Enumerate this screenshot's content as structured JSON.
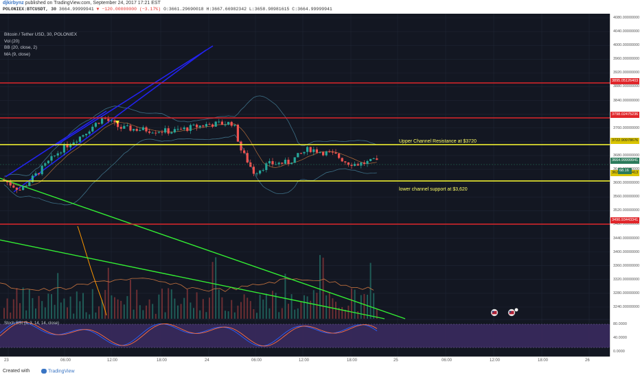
{
  "header": {
    "author": "djkirbynz",
    "published": "published on TradingView.com, September 24, 2017 17:21 EST",
    "symbol": "POLONIEX:BTCUSDT, 30",
    "price": "3664.99999941",
    "change": "▼ −120.00000000 (−3.17%)",
    "ohlc": "O:3661.29690018 H:3667.66982342 L:3658.98981615 C:3664.99999941"
  },
  "legend": {
    "title": "Bitcoin / Tether USD, 30, POLONIEX",
    "vol": "Vol (20)",
    "bb": "BB (20, close, 2)",
    "ma": "MA (9, close)",
    "stoch": "Stoch RSI (3, 3, 14, 14, close)"
  },
  "annotations": {
    "upper": "Upper Channel Resistance at $3720",
    "lower": "lower channel support at $3,620"
  },
  "yaxis": {
    "ticks": [
      "4080.00000000",
      "4040.00000000",
      "4000.00000000",
      "3960.00000000",
      "3920.00000000",
      "3880.00000000",
      "3840.00000000",
      "3800.00000000",
      "3760.00000000",
      "3720.00000000",
      "3680.00000000",
      "3640.00000000",
      "3600.00000000",
      "3560.00000000",
      "3520.00000000",
      "3480.00000000",
      "3440.00000000",
      "3400.00000000",
      "3360.00000000",
      "3320.00000000",
      "3280.00000000",
      "3240.00000000"
    ],
    "stoch_ticks": [
      "80.0000",
      "40.0000",
      "0.0000"
    ],
    "tags": [
      {
        "label": "3895.05126403",
        "color": "#e0262a"
      },
      {
        "label": "3798.02475236",
        "color": "#e0262a"
      },
      {
        "label": "3722.90978676",
        "color": "#d9c400"
      },
      {
        "label": "3664.99999941",
        "color": "#2b7a5b"
      },
      {
        "label": "3629.63425413",
        "color": "#d9c400"
      },
      {
        "label": "3490.93443341",
        "color": "#e0262a"
      }
    ],
    "volume_tag": "68.16"
  },
  "xaxis": {
    "ticks": [
      "23",
      "06:00",
      "12:00",
      "18:00",
      "24",
      "06:00",
      "12:00",
      "18:00",
      "25",
      "06:00",
      "12:00",
      "18:00",
      "26"
    ]
  },
  "footer": {
    "created": "Created with",
    "brand": "TradingView"
  },
  "colors": {
    "background": "#131722",
    "up": "#26a69a",
    "down": "#ef5350",
    "resistance_red": "#e0262a",
    "channel_yellow": "#ffff33",
    "trend_green": "#33ee33",
    "channel_blue": "#2222ee"
  }
}
